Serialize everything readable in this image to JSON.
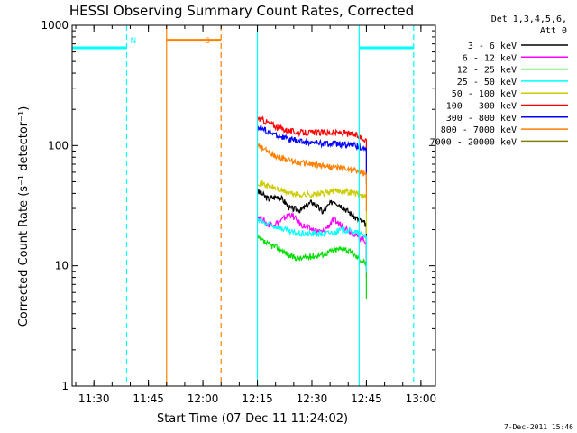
{
  "chart_data": {
    "type": "line",
    "title": "HESSI Observing Summary Count Rates, Corrected",
    "xlabel": "Start Time (07-Dec-11 11:24:02)",
    "ylabel": "Corrected Count Rate (s⁻¹ detector⁻¹)",
    "footer": "7-Dec-2011 15:46",
    "yscale": "log",
    "xlim": [
      "11:24",
      "13:04"
    ],
    "ylim": [
      1,
      1000
    ],
    "x_ticks": [
      "11:30",
      "11:45",
      "12:00",
      "12:15",
      "12:30",
      "12:45",
      "13:00"
    ],
    "y_ticks": [
      "1",
      "10",
      "100",
      "1000"
    ],
    "legend_header": [
      "Det 1,3,4,5,6,",
      "Att 0"
    ],
    "legend_position": "right",
    "series": [
      {
        "name": "3 - 6 keV",
        "color": "#000000",
        "x": [
          "12:15",
          "12:18",
          "12:21",
          "12:24",
          "12:27",
          "12:30",
          "12:33",
          "12:36",
          "12:39",
          "12:42",
          "12:45"
        ],
        "y": [
          42,
          36,
          38,
          30,
          29,
          34,
          28,
          35,
          30,
          25,
          22
        ]
      },
      {
        "name": "6 - 12 keV",
        "color": "#ff00ff",
        "x": [
          "12:15",
          "12:18",
          "12:21",
          "12:24",
          "12:27",
          "12:30",
          "12:33",
          "12:36",
          "12:39",
          "12:42",
          "12:45"
        ],
        "y": [
          26,
          22,
          23,
          27,
          22,
          20,
          19,
          24,
          21,
          18,
          16
        ]
      },
      {
        "name": "12 - 25 keV",
        "color": "#00dd00",
        "x": [
          "12:15",
          "12:18",
          "12:21",
          "12:24",
          "12:27",
          "12:30",
          "12:33",
          "12:36",
          "12:39",
          "12:42",
          "12:45"
        ],
        "y": [
          17,
          15,
          14,
          12,
          11.5,
          12,
          12.5,
          13.5,
          14,
          12,
          10.5
        ]
      },
      {
        "name": "25 - 50 keV",
        "color": "#00ffff",
        "x": [
          "12:15",
          "12:18",
          "12:21",
          "12:24",
          "12:27",
          "12:30",
          "12:33",
          "12:36",
          "12:39",
          "12:42",
          "12:45"
        ],
        "y": [
          24,
          22,
          21,
          19,
          18.5,
          18.5,
          18.5,
          19,
          20,
          19,
          17.5
        ]
      },
      {
        "name": "50 - 100 keV",
        "color": "#cccc00",
        "x": [
          "12:15",
          "12:18",
          "12:21",
          "12:24",
          "12:27",
          "12:30",
          "12:33",
          "12:36",
          "12:39",
          "12:42",
          "12:45"
        ],
        "y": [
          50,
          46,
          43,
          40,
          39,
          39,
          40,
          42,
          42,
          40,
          37
        ]
      },
      {
        "name": "100 - 300 keV",
        "color": "#ff0000",
        "x": [
          "12:15",
          "12:18",
          "12:21",
          "12:24",
          "12:27",
          "12:30",
          "12:33",
          "12:36",
          "12:39",
          "12:42",
          "12:45"
        ],
        "y": [
          170,
          155,
          140,
          132,
          128,
          128,
          128,
          128,
          127,
          122,
          112
        ]
      },
      {
        "name": "300 - 800 keV",
        "color": "#0000ff",
        "x": [
          "12:15",
          "12:18",
          "12:21",
          "12:24",
          "12:27",
          "12:30",
          "12:33",
          "12:36",
          "12:39",
          "12:42",
          "12:45"
        ],
        "y": [
          145,
          130,
          120,
          112,
          108,
          106,
          104,
          103,
          102,
          100,
          95
        ]
      },
      {
        "name": "800 - 7000 keV",
        "color": "#ff8000",
        "x": [
          "12:15",
          "12:18",
          "12:21",
          "12:24",
          "12:27",
          "12:30",
          "12:33",
          "12:36",
          "12:39",
          "12:42",
          "12:45"
        ],
        "y": [
          100,
          88,
          80,
          75,
          72,
          70,
          68,
          66,
          64,
          62,
          57
        ]
      },
      {
        "name": "7000 - 20000 keV",
        "color": "#808000",
        "x": [],
        "y": []
      }
    ],
    "event_markers": [
      {
        "label": "",
        "type": "cyan-bar",
        "color": "#00ffff",
        "x_start": "11:24",
        "x_end": "11:39",
        "y": 650
      },
      {
        "label": "N",
        "type": "cyan-dash",
        "color": "#00ffff",
        "x": "11:39"
      },
      {
        "label": "S",
        "type": "orange-bar",
        "color": "#ff8000",
        "x_start": "11:50",
        "x_end": "12:05",
        "y": 750
      },
      {
        "label": "",
        "type": "orange-dash",
        "color": "#ff8000",
        "x": "12:05"
      },
      {
        "label": "",
        "type": "cyan-solid",
        "color": "#00ffff",
        "x": "12:15"
      },
      {
        "label": "",
        "type": "cyan-solid",
        "color": "#00ffff",
        "x": "12:43"
      },
      {
        "label": "",
        "type": "cyan-bar",
        "color": "#00ffff",
        "x_start": "12:43",
        "x_end": "12:58",
        "y": 650
      },
      {
        "label": "",
        "type": "cyan-dash",
        "color": "#00ffff",
        "x": "12:58"
      }
    ]
  }
}
